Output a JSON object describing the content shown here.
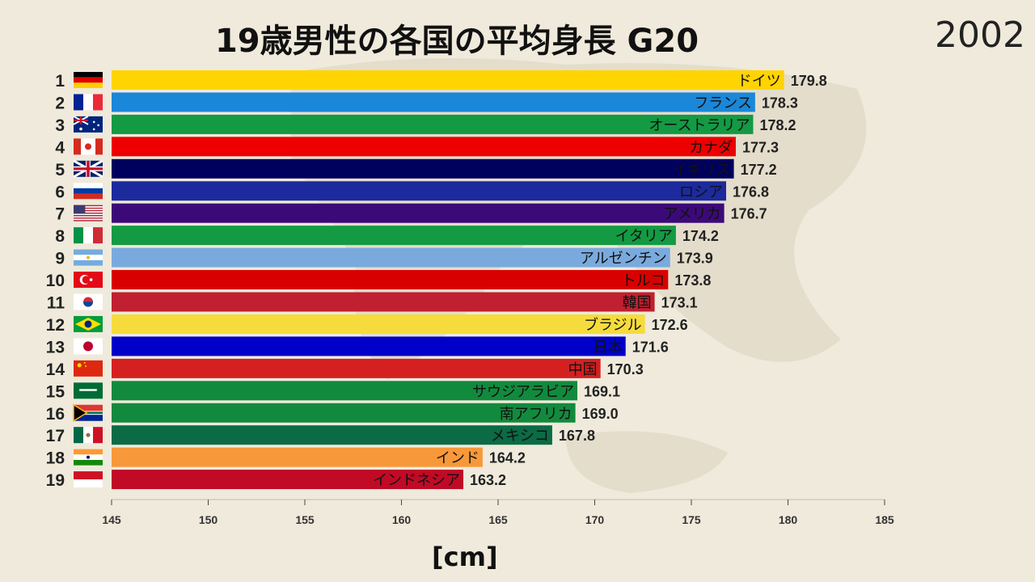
{
  "chart_data": {
    "type": "bar",
    "orientation": "horizontal",
    "title": "19歳男性の各国の平均身長 G20",
    "year": "2002",
    "xlabel": "[cm]",
    "xlim": [
      145,
      185
    ],
    "xticks": [
      145,
      150,
      155,
      160,
      165,
      170,
      175,
      180,
      185
    ],
    "bars": [
      {
        "rank": 1,
        "name": "ドイツ",
        "value": 179.8,
        "label": "179.8",
        "color": "#ffd400",
        "flag": "germany-flag"
      },
      {
        "rank": 2,
        "name": "フランス",
        "value": 178.3,
        "label": "178.3",
        "color": "#1a87d8",
        "flag": "france-flag"
      },
      {
        "rank": 3,
        "name": "オーストラリア",
        "value": 178.2,
        "label": "178.2",
        "color": "#139a43",
        "flag": "australia-flag"
      },
      {
        "rank": 4,
        "name": "カナダ",
        "value": 177.3,
        "label": "177.3",
        "color": "#ee0000",
        "flag": "canada-flag"
      },
      {
        "rank": 5,
        "name": "イギリス",
        "value": 177.2,
        "label": "177.2",
        "color": "#00005e",
        "flag": "uk-flag"
      },
      {
        "rank": 6,
        "name": "ロシア",
        "value": 176.8,
        "label": "176.8",
        "color": "#1c2a9e",
        "flag": "russia-flag"
      },
      {
        "rank": 7,
        "name": "アメリカ",
        "value": 176.7,
        "label": "176.7",
        "color": "#3c0a78",
        "flag": "usa-flag"
      },
      {
        "rank": 8,
        "name": "イタリア",
        "value": 174.2,
        "label": "174.2",
        "color": "#139a43",
        "flag": "italy-flag"
      },
      {
        "rank": 9,
        "name": "アルゼンチン",
        "value": 173.9,
        "label": "173.9",
        "color": "#7aaadd",
        "flag": "argentina-flag"
      },
      {
        "rank": 10,
        "name": "トルコ",
        "value": 173.8,
        "label": "173.8",
        "color": "#d80000",
        "flag": "turkey-flag"
      },
      {
        "rank": 11,
        "name": "韓国",
        "value": 173.1,
        "label": "173.1",
        "color": "#c0202f",
        "flag": "korea-flag"
      },
      {
        "rank": 12,
        "name": "ブラジル",
        "value": 172.6,
        "label": "172.6",
        "color": "#f5dc3c",
        "flag": "brazil-flag"
      },
      {
        "rank": 13,
        "name": "日本",
        "value": 171.6,
        "label": "171.6",
        "color": "#0000c8",
        "flag": "japan-flag"
      },
      {
        "rank": 14,
        "name": "中国",
        "value": 170.3,
        "label": "170.3",
        "color": "#d42020",
        "flag": "china-flag"
      },
      {
        "rank": 15,
        "name": "サウジアラビア",
        "value": 169.1,
        "label": "169.1",
        "color": "#128a3e",
        "flag": "saudi-flag"
      },
      {
        "rank": 16,
        "name": "南アフリカ",
        "value": 169.0,
        "label": "169.0",
        "color": "#128a3e",
        "flag": "south-africa-flag"
      },
      {
        "rank": 17,
        "name": "メキシコ",
        "value": 167.8,
        "label": "167.8",
        "color": "#0a6b45",
        "flag": "mexico-flag"
      },
      {
        "rank": 18,
        "name": "インド",
        "value": 164.2,
        "label": "164.2",
        "color": "#f7983a",
        "flag": "india-flag"
      },
      {
        "rank": 19,
        "name": "インドネシア",
        "value": 163.2,
        "label": "163.2",
        "color": "#c00a26",
        "flag": "indonesia-flag"
      }
    ]
  }
}
